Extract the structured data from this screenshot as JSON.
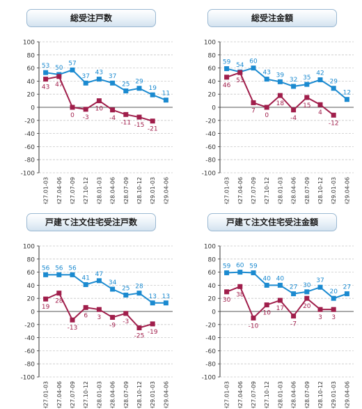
{
  "colors": {
    "blue": "#1b8ad0",
    "red": "#a01e4b",
    "grid": "#c8c8c8",
    "axis": "#333333"
  },
  "chart_data": [
    {
      "type": "line",
      "title": "総受注戸数",
      "categories": [
        "H27.01-03",
        "H27.04-06",
        "H27.07-09",
        "H27.10-12",
        "H28.01-03",
        "H28.04-06",
        "H28.07-09",
        "H28.10-12",
        "H29.01-03",
        "H29.04-06"
      ],
      "ylim": [
        -100,
        100
      ],
      "yticks": [
        100,
        80,
        60,
        40,
        20,
        0,
        -20,
        -40,
        -60,
        -80,
        -100
      ],
      "grid": true,
      "series": [
        {
          "color": "#1b8ad0",
          "marker": "square",
          "values": [
            53,
            50,
            57,
            37,
            43,
            37,
            25,
            29,
            19,
            11
          ]
        },
        {
          "color": "#a01e4b",
          "marker": "square",
          "values": [
            43,
            47,
            0,
            -3,
            10,
            -4,
            -11,
            -15,
            -21,
            null
          ]
        }
      ]
    },
    {
      "type": "line",
      "title": "総受注金額",
      "categories": [
        "H27.01-03",
        "H27.04-06",
        "H27.07-09",
        "H27.10-12",
        "H28.01-03",
        "H28.04-06",
        "H28.07-09",
        "H28.10-12",
        "H29.01-03",
        "H29.04-06"
      ],
      "ylim": [
        -100,
        100
      ],
      "yticks": [
        100,
        80,
        60,
        40,
        20,
        0,
        -20,
        -40,
        -60,
        -80,
        -100
      ],
      "grid": true,
      "series": [
        {
          "color": "#1b8ad0",
          "marker": "square",
          "values": [
            59,
            54,
            60,
            43,
            39,
            32,
            35,
            42,
            29,
            12
          ]
        },
        {
          "color": "#a01e4b",
          "marker": "square",
          "values": [
            46,
            53,
            7,
            0,
            18,
            -4,
            15,
            4,
            -12,
            null
          ]
        }
      ]
    },
    {
      "type": "line",
      "title": "戸建て注文住宅受注戸数",
      "categories": [
        "H27.01-03",
        "H27.04-06",
        "H27.07-09",
        "H27.10-12",
        "H28.01-03",
        "H28.04-06",
        "H28.07-09",
        "H28.10-12",
        "H29.01-03",
        "H29.04-06"
      ],
      "ylim": [
        -100,
        100
      ],
      "yticks": [
        100,
        80,
        60,
        40,
        20,
        0,
        -20,
        -40,
        -60,
        -80,
        -100
      ],
      "grid": true,
      "series": [
        {
          "color": "#1b8ad0",
          "marker": "square",
          "values": [
            56,
            56,
            56,
            41,
            47,
            34,
            25,
            28,
            13,
            13
          ]
        },
        {
          "color": "#a01e4b",
          "marker": "square",
          "values": [
            19,
            28,
            -13,
            6,
            3,
            -9,
            -3,
            -25,
            -19,
            null
          ]
        }
      ]
    },
    {
      "type": "line",
      "title": "戸建て注文住宅受注金額",
      "categories": [
        "H27.01-03",
        "H27.04-06",
        "H27.07-09",
        "H27.10-12",
        "H28.01-03",
        "H28.04-06",
        "H28.07-09",
        "H28.10-12",
        "H29.01-03",
        "H29.04-06"
      ],
      "ylim": [
        -100,
        100
      ],
      "yticks": [
        100,
        80,
        60,
        40,
        20,
        0,
        -20,
        -40,
        -60,
        -80,
        -100
      ],
      "grid": true,
      "series": [
        {
          "color": "#1b8ad0",
          "marker": "square",
          "values": [
            59,
            60,
            59,
            40,
            40,
            27,
            30,
            37,
            20,
            27
          ]
        },
        {
          "color": "#a01e4b",
          "marker": "square",
          "values": [
            30,
            38,
            -10,
            10,
            17,
            -7,
            20,
            3,
            3,
            null
          ]
        }
      ]
    }
  ]
}
